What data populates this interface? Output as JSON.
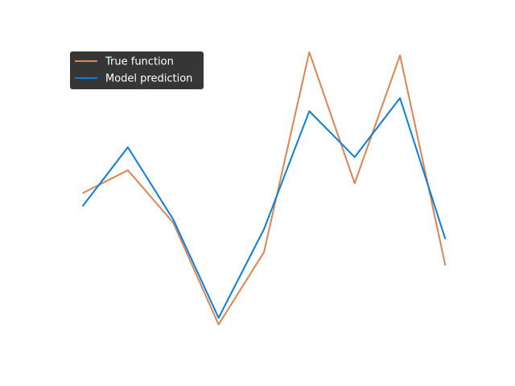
{
  "chart_data": {
    "type": "line",
    "title": "",
    "xlabel": "",
    "ylabel": "",
    "axes_visible": false,
    "grid": false,
    "legend_position": "top-left",
    "legend_style": "dark",
    "x": [
      0,
      1,
      2,
      3,
      4,
      5,
      6,
      7,
      8
    ],
    "xlim": [
      -0.4,
      8.4
    ],
    "ylim": [
      0.0,
      1.0
    ],
    "series": [
      {
        "name": "True function",
        "color": "#dd8452",
        "values": [
          0.47,
          0.54,
          0.38,
          0.07,
          0.29,
          0.9,
          0.5,
          0.89,
          0.25
        ]
      },
      {
        "name": "Model prediction",
        "color": "#0a7ee0",
        "values": [
          0.43,
          0.61,
          0.39,
          0.09,
          0.36,
          0.72,
          0.58,
          0.76,
          0.33
        ]
      }
    ]
  }
}
